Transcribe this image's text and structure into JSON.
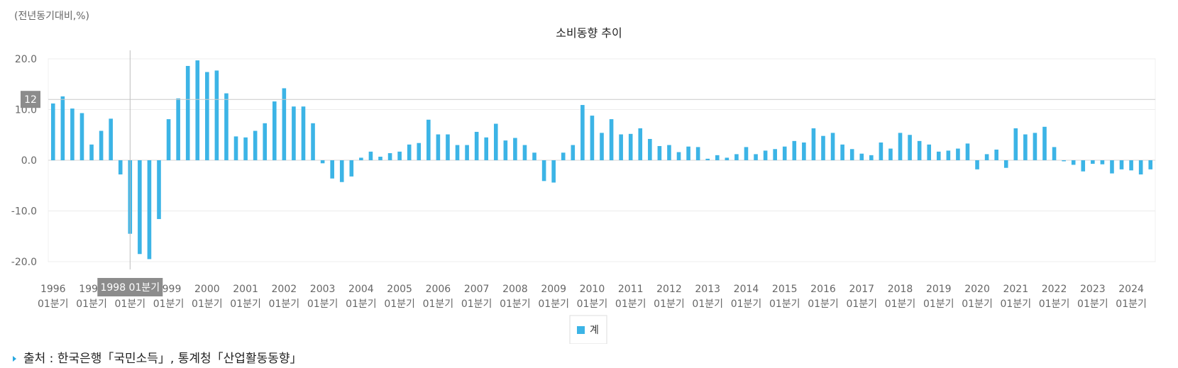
{
  "unit_label": "(전년동기대비,%)",
  "source_text": "출처 : 한국은행「국민소득」, 통계청「산업활동동향」",
  "colors": {
    "bar": "#3cb4e6",
    "grid": "#ececec",
    "axis_text": "#666666",
    "tooltip_bg": "#8c8c8c"
  },
  "tooltip": {
    "category": "1998 01분기",
    "crosshair_value": "12"
  },
  "chart_data": {
    "type": "bar",
    "title": "소비동향 추이",
    "xlabel": "",
    "ylabel": "",
    "ylim": [
      -20,
      20
    ],
    "y_ticks": [
      "20.0",
      "10.0",
      "0.0",
      "-10.0",
      "-20.0"
    ],
    "grid": true,
    "legend_position": "bottom-center",
    "x_tick_labels": [
      {
        "year": "1996",
        "quarter": "01분기"
      },
      {
        "year": "1997",
        "quarter": "01분기"
      },
      {
        "year": "1998",
        "quarter": "01분기"
      },
      {
        "year": "1999",
        "quarter": "01분기"
      },
      {
        "year": "2000",
        "quarter": "01분기"
      },
      {
        "year": "2001",
        "quarter": "01분기"
      },
      {
        "year": "2002",
        "quarter": "01분기"
      },
      {
        "year": "2003",
        "quarter": "01분기"
      },
      {
        "year": "2004",
        "quarter": "01분기"
      },
      {
        "year": "2005",
        "quarter": "01분기"
      },
      {
        "year": "2006",
        "quarter": "01분기"
      },
      {
        "year": "2007",
        "quarter": "01분기"
      },
      {
        "year": "2008",
        "quarter": "01분기"
      },
      {
        "year": "2009",
        "quarter": "01분기"
      },
      {
        "year": "2010",
        "quarter": "01분기"
      },
      {
        "year": "2011",
        "quarter": "01분기"
      },
      {
        "year": "2012",
        "quarter": "01분기"
      },
      {
        "year": "2013",
        "quarter": "01분기"
      },
      {
        "year": "2014",
        "quarter": "01분기"
      },
      {
        "year": "2015",
        "quarter": "01분기"
      },
      {
        "year": "2016",
        "quarter": "01분기"
      },
      {
        "year": "2017",
        "quarter": "01분기"
      },
      {
        "year": "2018",
        "quarter": "01분기"
      },
      {
        "year": "2019",
        "quarter": "01분기"
      },
      {
        "year": "2020",
        "quarter": "01분기"
      },
      {
        "year": "2021",
        "quarter": "01분기"
      },
      {
        "year": "2022",
        "quarter": "01분기"
      },
      {
        "year": "2023",
        "quarter": "01분기"
      },
      {
        "year": "2024",
        "quarter": "01분기"
      }
    ],
    "series": [
      {
        "name": "계",
        "values": [
          11.2,
          12.6,
          10.2,
          9.3,
          3.1,
          5.8,
          8.2,
          -2.8,
          -14.5,
          -18.5,
          -19.5,
          -11.6,
          8.1,
          12.2,
          18.6,
          19.7,
          17.4,
          17.7,
          13.2,
          4.7,
          4.5,
          5.8,
          7.3,
          11.6,
          14.2,
          10.6,
          10.6,
          7.3,
          -0.6,
          -3.6,
          -4.3,
          -3.2,
          0.5,
          1.7,
          0.7,
          1.4,
          1.7,
          3.1,
          3.4,
          8.0,
          5.1,
          5.1,
          3.0,
          3.0,
          5.6,
          4.5,
          7.2,
          3.9,
          4.4,
          3.0,
          1.5,
          -4.1,
          -4.4,
          1.5,
          3.0,
          10.9,
          8.8,
          5.4,
          8.1,
          5.1,
          5.2,
          6.3,
          4.2,
          2.8,
          3.0,
          1.6,
          2.7,
          2.6,
          0.3,
          1.0,
          0.5,
          1.2,
          2.6,
          1.2,
          1.9,
          2.2,
          2.7,
          3.8,
          3.5,
          6.3,
          4.8,
          5.4,
          3.1,
          2.2,
          1.3,
          1.0,
          3.5,
          2.3,
          5.4,
          5.0,
          3.8,
          3.1,
          1.7,
          1.9,
          2.3,
          3.3,
          -1.8,
          1.2,
          2.1,
          -1.5,
          6.3,
          5.1,
          5.4,
          6.6,
          2.6,
          -0.2,
          -0.9,
          -2.2,
          -0.7,
          -0.8,
          -2.6,
          -1.8,
          -2.0,
          -2.8,
          -1.8
        ]
      }
    ]
  }
}
